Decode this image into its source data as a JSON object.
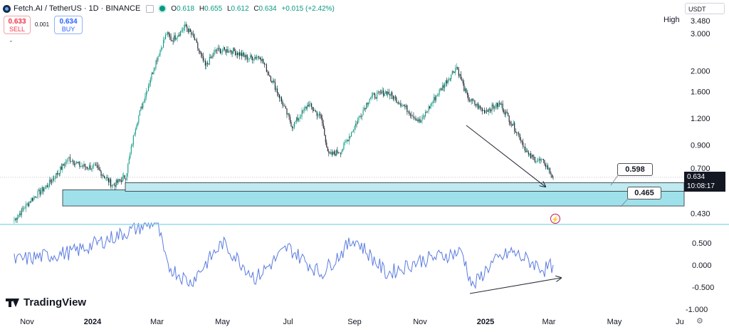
{
  "header": {
    "symbol": "Fetch.AI / TetherUS · 1D · BINANCE",
    "open_label": "O",
    "open": "0.618",
    "high_label": "H",
    "high": "0.655",
    "low_label": "L",
    "low": "0.612",
    "close_label": "C",
    "close": "0.634",
    "change": "+0.015 (+2.42%)"
  },
  "trade": {
    "sell_price": "0.633",
    "sell_label": "SELL",
    "spread": "0.001",
    "buy_price": "0.634",
    "buy_label": "BUY"
  },
  "currency": "USDT",
  "high_marker": {
    "label": "High",
    "value": "3.480"
  },
  "last_price": {
    "value": "0.634",
    "countdown": "10:08:17"
  },
  "box_labels": {
    "upper": "0.598",
    "lower": "0.465"
  },
  "brand": "TradingView",
  "colors": {
    "up": "#089981",
    "down": "#131722",
    "zone": "#7fd6e3",
    "oscillator": "#5b7be0"
  },
  "icons": {
    "flash": "flash-icon",
    "settings": "gear-icon"
  },
  "chart_data": [
    {
      "type": "candlestick",
      "title": "Fetch.AI / TetherUS · 1D · BINANCE",
      "scale": "log",
      "y_ticks": [
        3.0,
        2.0,
        1.6,
        1.2,
        0.9,
        0.7,
        0.43
      ],
      "y_tick_labels": [
        "3.000",
        "2.000",
        "1.600",
        "1.200",
        "0.900",
        "0.700",
        "0.430"
      ],
      "x_labels": [
        "Nov",
        "2024",
        "Mar",
        "May",
        "Jul",
        "Sep",
        "Nov",
        "2025",
        "Mar",
        "May",
        "Ju"
      ],
      "x_label_dates": [
        "2023-11-01",
        "2024-01-01",
        "2024-03-01",
        "2024-05-01",
        "2024-07-01",
        "2024-09-01",
        "2024-11-01",
        "2025-01-01",
        "2025-03-01",
        "2025-05-01",
        "2025-07-01"
      ],
      "close_path": [
        [
          "2023-10-20",
          0.4
        ],
        [
          "2023-11-05",
          0.5
        ],
        [
          "2023-11-20",
          0.58
        ],
        [
          "2023-12-01",
          0.68
        ],
        [
          "2023-12-10",
          0.78
        ],
        [
          "2023-12-20",
          0.72
        ],
        [
          "2024-01-05",
          0.7
        ],
        [
          "2024-01-20",
          0.58
        ],
        [
          "2024-02-01",
          0.64
        ],
        [
          "2024-02-10",
          1.1
        ],
        [
          "2024-02-20",
          1.6
        ],
        [
          "2024-03-01",
          2.3
        ],
        [
          "2024-03-10",
          3.0
        ],
        [
          "2024-03-15",
          2.8
        ],
        [
          "2024-03-28",
          3.25
        ],
        [
          "2024-04-05",
          2.8
        ],
        [
          "2024-04-15",
          2.1
        ],
        [
          "2024-04-25",
          2.5
        ],
        [
          "2024-05-10",
          2.5
        ],
        [
          "2024-05-25",
          2.3
        ],
        [
          "2024-06-05",
          2.35
        ],
        [
          "2024-06-20",
          1.65
        ],
        [
          "2024-07-05",
          1.1
        ],
        [
          "2024-07-20",
          1.4
        ],
        [
          "2024-08-01",
          1.2
        ],
        [
          "2024-08-08",
          0.8
        ],
        [
          "2024-08-20",
          0.85
        ],
        [
          "2024-09-01",
          1.1
        ],
        [
          "2024-09-15",
          1.5
        ],
        [
          "2024-10-01",
          1.6
        ],
        [
          "2024-10-15",
          1.4
        ],
        [
          "2024-11-01",
          1.15
        ],
        [
          "2024-11-15",
          1.5
        ],
        [
          "2024-12-05",
          2.1
        ],
        [
          "2024-12-15",
          1.5
        ],
        [
          "2024-12-30",
          1.3
        ],
        [
          "2025-01-15",
          1.4
        ],
        [
          "2025-02-01",
          1.0
        ],
        [
          "2025-02-10",
          0.8
        ],
        [
          "2025-02-25",
          0.74
        ],
        [
          "2025-03-05",
          0.634
        ]
      ],
      "support_zone": {
        "top": 0.598,
        "bottom": 0.465
      },
      "annotations": [
        "0.598",
        "0.465"
      ],
      "last_price": 0.634,
      "ath_marker": 3.48
    },
    {
      "type": "line",
      "series": [
        {
          "values": [
            0.1,
            0.3,
            1.0,
            0.0,
            -0.4,
            0.5,
            -0.3,
            0.4,
            -0.2,
            0.6,
            -0.2,
            0.1,
            0.3,
            -0.5,
            0.0,
            0.3,
            0.1,
            -0.1,
            0.0
          ]
        }
      ],
      "x_dates": [
        "2023-10-20",
        "2023-12-15",
        "2024-03-01",
        "2024-03-10",
        "2024-04-01",
        "2024-05-01",
        "2024-06-01",
        "2024-07-01",
        "2024-08-01",
        "2024-09-01",
        "2024-10-01",
        "2024-11-01",
        "2024-12-10",
        "2024-12-20",
        "2025-01-05",
        "2025-01-25",
        "2025-02-10",
        "2025-02-25",
        "2025-03-05"
      ],
      "y_ticks": [
        0.5,
        0.0,
        -0.5,
        -1.0
      ],
      "y_tick_labels": [
        "0.500",
        "0.000",
        "-0.500",
        "-1.000"
      ]
    }
  ]
}
